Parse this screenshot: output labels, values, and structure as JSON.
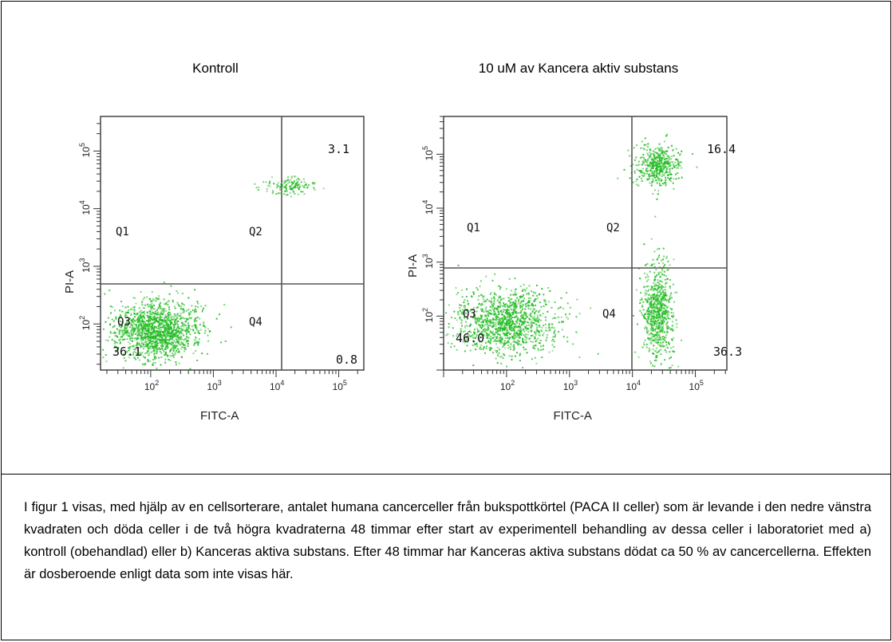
{
  "caption": "I figur 1 visas, med hjälp av en cellsorterare, antalet humana cancerceller från bukspottkörtel (PACA II celler) som är levande i den nedre vänstra kvadraten och döda celler i de två högra kvadraterna 48 timmar efter start av experimentell behandling av dessa celler i laboratoriet med a) kontroll (obehandlad) eller b) Kanceras aktiva substans. Efter 48 timmar har Kanceras aktiva substans dödat ca 50 % av cancercellerna. Effekten är dosberoende enligt data som inte visas här.",
  "chart_data": [
    {
      "type": "scatter",
      "title": "Kontroll",
      "xlabel": "FITC-A",
      "ylabel": "PI-A",
      "xscale": "log",
      "yscale": "log",
      "x_ticks": [
        "10^2",
        "10^3",
        "10^4",
        "10^5"
      ],
      "y_ticks": [
        "10^2",
        "10^3",
        "10^4",
        "10^5"
      ],
      "quadrant_labels": [
        "Q1",
        "Q2",
        "Q3",
        "Q4"
      ],
      "quadrant_percent": {
        "Q1": "",
        "Q2": "3.1",
        "Q3": "36.1",
        "Q4": "0.8"
      },
      "point_color": "#22bb22",
      "clusters": [
        {
          "name": "",
          "center_log": [
            2.1,
            1.9
          ],
          "spread_log": [
            0.35,
            0.25
          ],
          "count": 1400
        },
        {
          "name": "",
          "center_log": [
            4.2,
            4.4
          ],
          "spread_log": [
            0.2,
            0.08
          ],
          "count": 130
        }
      ]
    },
    {
      "type": "scatter",
      "title": "10 uM av Kancera aktiv substans",
      "xlabel": "FITC-A",
      "ylabel": "PI-A",
      "xscale": "log",
      "yscale": "log",
      "x_ticks": [
        "10^2",
        "10^3",
        "10^4",
        "10^5"
      ],
      "y_ticks": [
        "10^2",
        "10^3",
        "10^4",
        "10^5"
      ],
      "quadrant_labels": [
        "Q1",
        "Q2",
        "Q3",
        "Q4"
      ],
      "quadrant_percent": {
        "Q1": "",
        "Q2": "16.4",
        "Q3": "46.0",
        "Q4": "36.3"
      },
      "point_color": "#22bb22",
      "clusters": [
        {
          "name": "",
          "center_log": [
            2.0,
            1.9
          ],
          "spread_log": [
            0.4,
            0.3
          ],
          "count": 1200
        },
        {
          "name": "",
          "center_log": [
            4.4,
            2.1
          ],
          "spread_log": [
            0.12,
            0.45
          ],
          "count": 700
        },
        {
          "name": "",
          "center_log": [
            4.4,
            4.8
          ],
          "spread_log": [
            0.18,
            0.18
          ],
          "count": 450
        }
      ]
    }
  ]
}
